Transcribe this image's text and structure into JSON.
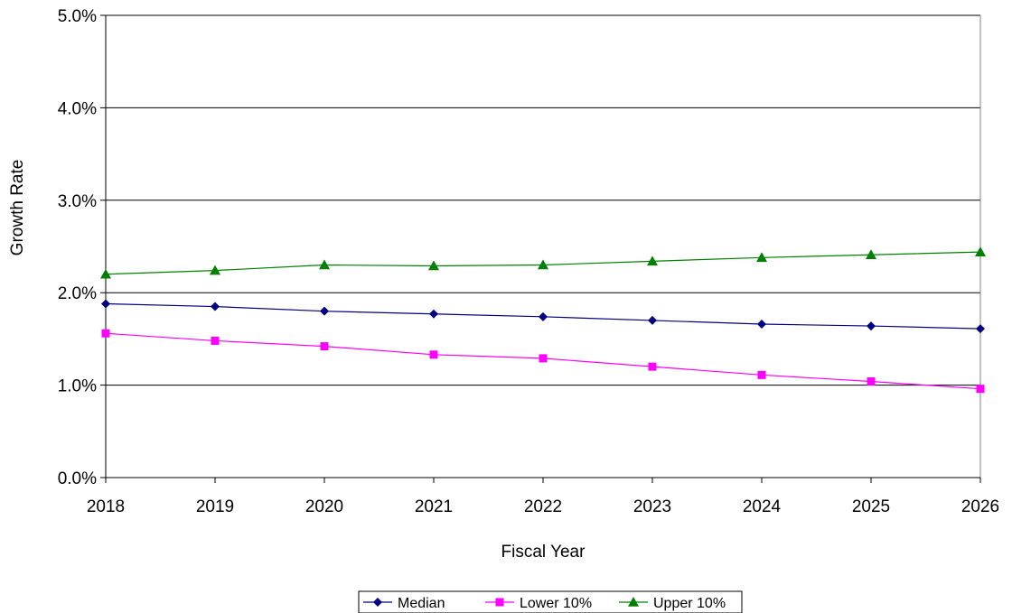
{
  "chart_data": {
    "type": "line",
    "title": "",
    "xlabel": "Fiscal Year",
    "ylabel": "Growth Rate",
    "categories": [
      "2018",
      "2019",
      "2020",
      "2021",
      "2022",
      "2023",
      "2024",
      "2025",
      "2026"
    ],
    "ylim": [
      0,
      5.0
    ],
    "yticks": [
      "0.0%",
      "1.0%",
      "2.0%",
      "3.0%",
      "4.0%",
      "5.0%"
    ],
    "grid": true,
    "legend_position": "bottom",
    "series": [
      {
        "name": "Median",
        "color": "#000080",
        "marker": "diamond",
        "values": [
          1.88,
          1.85,
          1.8,
          1.77,
          1.74,
          1.7,
          1.66,
          1.64,
          1.61
        ]
      },
      {
        "name": "Lower 10%",
        "color": "#ff00ff",
        "marker": "square",
        "values": [
          1.56,
          1.48,
          1.42,
          1.33,
          1.29,
          1.2,
          1.11,
          1.04,
          0.96
        ]
      },
      {
        "name": "Upper 10%",
        "color": "#008000",
        "marker": "triangle",
        "values": [
          2.2,
          2.24,
          2.3,
          2.29,
          2.3,
          2.34,
          2.38,
          2.41,
          2.44
        ]
      }
    ]
  }
}
